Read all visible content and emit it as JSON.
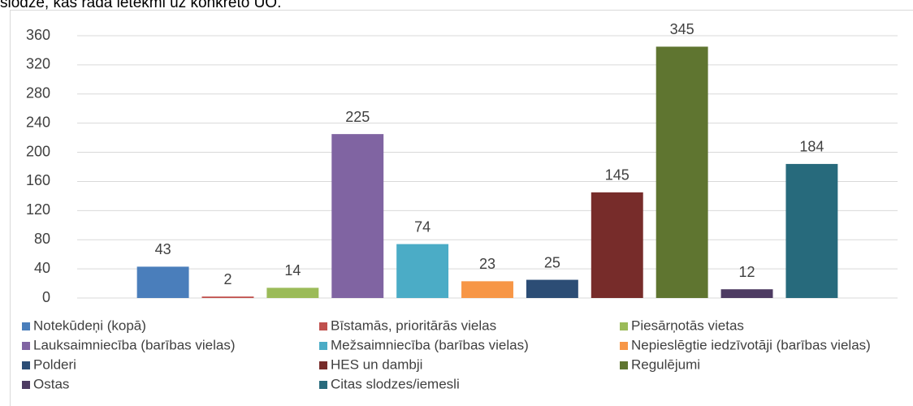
{
  "chart_data": {
    "type": "bar",
    "caption": "slodze, kas rada ietekmi uz konkrēto ŪO.",
    "categories": [
      null
    ],
    "series": [
      {
        "name": "Notekūdeņi (kopā)",
        "color": "#4a7ebb",
        "values": [
          43
        ]
      },
      {
        "name": "Bīstamās, prioritārās  vielas",
        "color": "#c0504d",
        "values": [
          2
        ]
      },
      {
        "name": "Piesārņotās vietas",
        "color": "#9bbb59",
        "values": [
          14
        ]
      },
      {
        "name": "Lauksaimniecība (barības vielas)",
        "color": "#8064a2",
        "values": [
          225
        ]
      },
      {
        "name": "Mežsaimniecība (barības vielas)",
        "color": "#4bacc6",
        "values": [
          74
        ]
      },
      {
        "name": "Nepieslēgtie iedzīvotāji (barības vielas)",
        "color": "#f79646",
        "values": [
          23
        ]
      },
      {
        "name": "Polderi",
        "color": "#2c4d75",
        "values": [
          25
        ]
      },
      {
        "name": "HES un dambji",
        "color": "#772c2a",
        "values": [
          145
        ]
      },
      {
        "name": "Regulējumi",
        "color": "#5f7530",
        "values": [
          345
        ]
      },
      {
        "name": "Ostas",
        "color": "#4d3b62",
        "values": [
          12
        ]
      },
      {
        "name": "Citas slodzes/iemesli",
        "color": "#276a7c",
        "values": [
          184
        ]
      }
    ],
    "ylim": [
      0,
      360
    ],
    "yticks": [
      0,
      40,
      80,
      120,
      160,
      200,
      240,
      280,
      320,
      360
    ],
    "grid": true,
    "legend": "bottom"
  }
}
